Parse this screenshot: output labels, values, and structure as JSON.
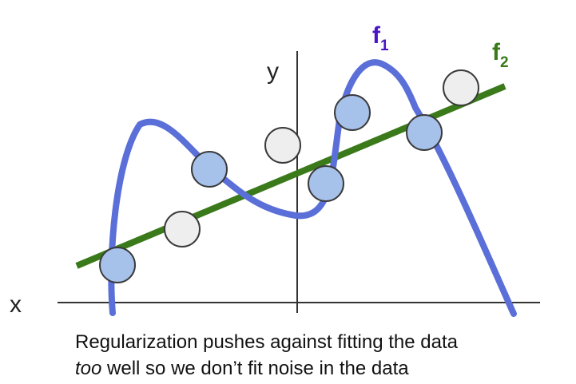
{
  "labels": {
    "x_axis": "x",
    "y_axis": "y",
    "f1_main": "f",
    "f1_sub": "1",
    "f2_main": "f",
    "f2_sub": "2"
  },
  "caption": {
    "line1": "Regularization pushes against fitting the data",
    "line2_italic": "too",
    "line2_rest": " well so we don’t fit noise in the data"
  },
  "colors": {
    "f1": "#5a6fd8",
    "f1_label": "#4a16c8",
    "f2": "#3a7a1a",
    "f2_label": "#3a7a1a",
    "axis": "#333333",
    "point_on_fit_fill": "#a7c2ea",
    "point_off_fit_fill": "#eeeeee",
    "point_stroke": "#3a3a3a"
  },
  "legend": {
    "point_types": [
      "point-on-fit",
      "point-off-fit"
    ]
  }
}
